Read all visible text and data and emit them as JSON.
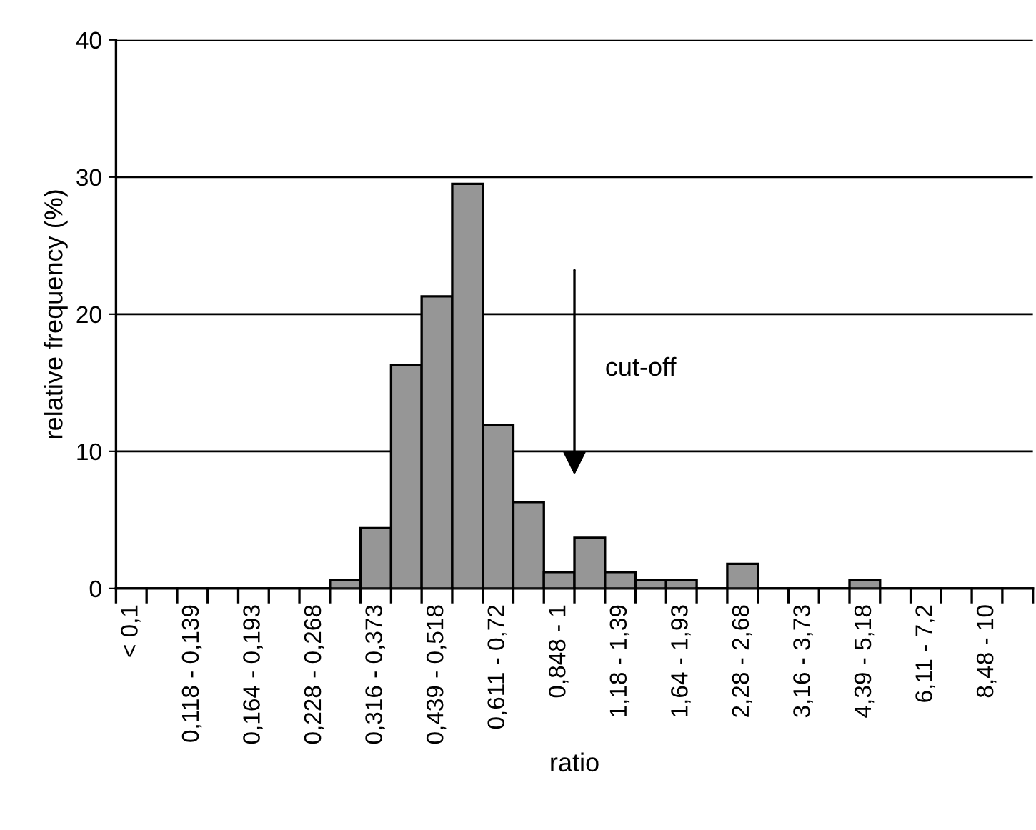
{
  "chart_data": {
    "type": "bar",
    "xlabel": "ratio",
    "ylabel": "relative frequency (%)",
    "categories": [
      "< 0,1",
      null,
      "0,118 - 0,139",
      null,
      "0,164 - 0,193",
      null,
      "0,228 - 0,268",
      null,
      "0,316 - 0,373",
      null,
      "0,439 - 0,518",
      null,
      "0,611 - 0,72",
      null,
      "0,848 - 1",
      null,
      "1,18 - 1,39",
      null,
      "1,64 - 1,93",
      null,
      "2,28 - 2,68",
      null,
      "3,16 - 3,73",
      null,
      "4,39 - 5,18",
      null,
      "6,11 - 7,2",
      null,
      "8,48 - 10",
      null
    ],
    "values": [
      0,
      0,
      0,
      0,
      0,
      0,
      0,
      0.6,
      4.4,
      16.3,
      21.3,
      29.5,
      11.9,
      6.3,
      1.2,
      3.7,
      1.2,
      0.6,
      0.6,
      0,
      1.8,
      0,
      0,
      0,
      0.6,
      0,
      0,
      0,
      0,
      0
    ],
    "color": "#969696",
    "ylim": [
      0,
      40
    ],
    "yticks": [
      0,
      10,
      20,
      30,
      40
    ],
    "grid": "y",
    "annotations": [
      "cut-off"
    ]
  }
}
